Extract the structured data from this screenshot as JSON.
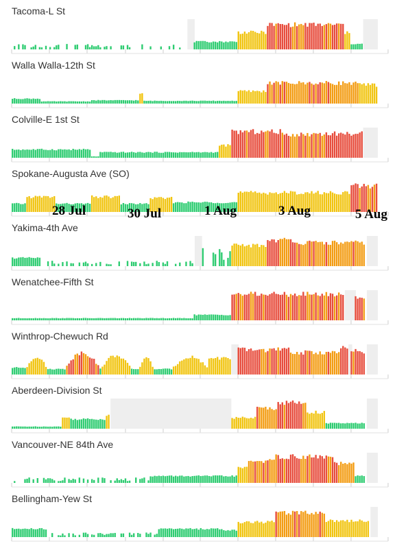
{
  "chart_data": {
    "type": "bar",
    "x_range": [
      "2023-07-27",
      "2023-08-05"
    ],
    "x_tick_labels": [
      "28 Jul",
      "30 Jul",
      "1 Aug",
      "3 Aug",
      "5 Aug"
    ],
    "category_colors": {
      "good": "#2ecc71",
      "moderate": "#f1c40f",
      "usg": "#f39c12",
      "unhealthy": "#e74c3c",
      "no_data": "#eeeeee"
    },
    "gridlines": true,
    "series": [
      {
        "name": "Tacoma-L St",
        "segments": [
          {
            "start": 0.0,
            "end": 0.48,
            "level": 0.12,
            "cat": "good",
            "pattern": "sparse"
          },
          {
            "start": 0.48,
            "end": 0.5,
            "level": 0,
            "cat": "no_data",
            "pattern": "nodata"
          },
          {
            "start": 0.5,
            "end": 0.62,
            "level": 0.28,
            "cat": "good",
            "pattern": "smooth"
          },
          {
            "start": 0.62,
            "end": 0.7,
            "level": 0.62,
            "cat": "moderate",
            "pattern": "smooth"
          },
          {
            "start": 0.7,
            "end": 0.91,
            "level": 0.9,
            "cat": "unhealthy",
            "pattern": "smooth"
          },
          {
            "start": 0.91,
            "end": 0.93,
            "level": 0.6,
            "cat": "moderate",
            "pattern": "smooth"
          },
          {
            "start": 0.93,
            "end": 0.96,
            "level": 0.2,
            "cat": "good",
            "pattern": "smooth"
          },
          {
            "start": 0.96,
            "end": 1.0,
            "level": 0,
            "cat": "no_data",
            "pattern": "nodata"
          }
        ]
      },
      {
        "name": "Walla Walla-12th St",
        "segments": [
          {
            "start": 0.0,
            "end": 0.08,
            "level": 0.18,
            "cat": "good",
            "pattern": "smooth"
          },
          {
            "start": 0.08,
            "end": 0.22,
            "level": 0.08,
            "cat": "good",
            "pattern": "smooth"
          },
          {
            "start": 0.22,
            "end": 0.35,
            "level": 0.12,
            "cat": "good",
            "pattern": "smooth"
          },
          {
            "start": 0.35,
            "end": 0.36,
            "level": 0.35,
            "cat": "moderate",
            "pattern": "smooth"
          },
          {
            "start": 0.36,
            "end": 0.62,
            "level": 0.1,
            "cat": "good",
            "pattern": "smooth"
          },
          {
            "start": 0.62,
            "end": 0.7,
            "level": 0.45,
            "cat": "moderate",
            "pattern": "smooth"
          },
          {
            "start": 0.7,
            "end": 0.95,
            "level": 0.75,
            "cat": "usg",
            "pattern": "smooth"
          },
          {
            "start": 0.95,
            "end": 1.0,
            "level": 0.68,
            "cat": "moderate",
            "pattern": "smooth"
          }
        ]
      },
      {
        "name": "Colville-E 1st St",
        "segments": [
          {
            "start": 0.0,
            "end": 0.22,
            "level": 0.3,
            "cat": "good",
            "pattern": "smooth"
          },
          {
            "start": 0.22,
            "end": 0.24,
            "level": 0.05,
            "cat": "good",
            "pattern": "smooth"
          },
          {
            "start": 0.24,
            "end": 0.57,
            "level": 0.2,
            "cat": "good",
            "pattern": "smooth"
          },
          {
            "start": 0.57,
            "end": 0.6,
            "level": 0.45,
            "cat": "moderate",
            "pattern": "smooth"
          },
          {
            "start": 0.6,
            "end": 0.74,
            "level": 0.95,
            "cat": "unhealthy",
            "pattern": "smooth"
          },
          {
            "start": 0.74,
            "end": 0.82,
            "level": 0.85,
            "cat": "usg",
            "pattern": "smooth"
          },
          {
            "start": 0.82,
            "end": 0.96,
            "level": 0.88,
            "cat": "unhealthy",
            "pattern": "smooth"
          },
          {
            "start": 0.96,
            "end": 1.0,
            "level": 0,
            "cat": "no_data",
            "pattern": "nodata"
          }
        ]
      },
      {
        "name": "Spokane-Augusta Ave (SO)",
        "segments": [
          {
            "start": 0.0,
            "end": 0.04,
            "level": 0.3,
            "cat": "good",
            "pattern": "smooth"
          },
          {
            "start": 0.04,
            "end": 0.12,
            "level": 0.55,
            "cat": "moderate",
            "pattern": "smooth"
          },
          {
            "start": 0.12,
            "end": 0.22,
            "level": 0.3,
            "cat": "good",
            "pattern": "smooth"
          },
          {
            "start": 0.22,
            "end": 0.3,
            "level": 0.55,
            "cat": "moderate",
            "pattern": "smooth"
          },
          {
            "start": 0.3,
            "end": 0.38,
            "level": 0.3,
            "cat": "good",
            "pattern": "smooth"
          },
          {
            "start": 0.38,
            "end": 0.44,
            "level": 0.5,
            "cat": "moderate",
            "pattern": "smooth"
          },
          {
            "start": 0.44,
            "end": 0.62,
            "level": 0.35,
            "cat": "good",
            "pattern": "smooth"
          },
          {
            "start": 0.62,
            "end": 0.93,
            "level": 0.7,
            "cat": "moderate",
            "pattern": "smooth"
          },
          {
            "start": 0.93,
            "end": 1.0,
            "level": 0.95,
            "cat": "unhealthy",
            "pattern": "smooth"
          }
        ]
      },
      {
        "name": "Yakima-4th Ave",
        "segments": [
          {
            "start": 0.0,
            "end": 0.08,
            "level": 0.3,
            "cat": "good",
            "pattern": "smooth"
          },
          {
            "start": 0.08,
            "end": 0.5,
            "level": 0.12,
            "cat": "good",
            "pattern": "sparse"
          },
          {
            "start": 0.5,
            "end": 0.52,
            "level": 0,
            "cat": "no_data",
            "pattern": "nodata"
          },
          {
            "start": 0.52,
            "end": 0.6,
            "level": 0.4,
            "cat": "good",
            "pattern": "sparse"
          },
          {
            "start": 0.6,
            "end": 0.7,
            "level": 0.75,
            "cat": "moderate",
            "pattern": "smooth"
          },
          {
            "start": 0.7,
            "end": 0.78,
            "level": 0.95,
            "cat": "unhealthy",
            "pattern": "smooth"
          },
          {
            "start": 0.78,
            "end": 0.97,
            "level": 0.85,
            "cat": "usg",
            "pattern": "smooth"
          },
          {
            "start": 0.97,
            "end": 1.0,
            "level": 0,
            "cat": "no_data",
            "pattern": "nodata"
          }
        ]
      },
      {
        "name": "Wenatchee-Fifth St",
        "segments": [
          {
            "start": 0.0,
            "end": 0.5,
            "level": 0.08,
            "cat": "good",
            "pattern": "smooth"
          },
          {
            "start": 0.5,
            "end": 0.6,
            "level": 0.2,
            "cat": "good",
            "pattern": "smooth"
          },
          {
            "start": 0.6,
            "end": 0.91,
            "level": 0.95,
            "cat": "unhealthy",
            "pattern": "smooth"
          },
          {
            "start": 0.91,
            "end": 0.94,
            "level": 0,
            "cat": "no_data",
            "pattern": "nodata"
          },
          {
            "start": 0.94,
            "end": 0.97,
            "level": 0.85,
            "cat": "unhealthy",
            "pattern": "smooth"
          },
          {
            "start": 0.97,
            "end": 1.0,
            "level": 0,
            "cat": "no_data",
            "pattern": "nodata"
          }
        ]
      },
      {
        "name": "Winthrop-Chewuch Rd",
        "segments": [
          {
            "start": 0.0,
            "end": 0.04,
            "level": 0.25,
            "cat": "good",
            "pattern": "smooth"
          },
          {
            "start": 0.04,
            "end": 0.1,
            "level": 0.65,
            "cat": "moderate",
            "pattern": "hump"
          },
          {
            "start": 0.1,
            "end": 0.15,
            "level": 0.2,
            "cat": "good",
            "pattern": "smooth"
          },
          {
            "start": 0.15,
            "end": 0.24,
            "level": 0.8,
            "cat": "unhealthy",
            "pattern": "hump"
          },
          {
            "start": 0.24,
            "end": 0.25,
            "level": 0.2,
            "cat": "good",
            "pattern": "smooth"
          },
          {
            "start": 0.25,
            "end": 0.33,
            "level": 0.7,
            "cat": "moderate",
            "pattern": "hump"
          },
          {
            "start": 0.33,
            "end": 0.35,
            "level": 0.2,
            "cat": "good",
            "pattern": "smooth"
          },
          {
            "start": 0.35,
            "end": 0.39,
            "level": 0.6,
            "cat": "moderate",
            "pattern": "hump"
          },
          {
            "start": 0.39,
            "end": 0.44,
            "level": 0.2,
            "cat": "good",
            "pattern": "smooth"
          },
          {
            "start": 0.44,
            "end": 0.54,
            "level": 0.65,
            "cat": "moderate",
            "pattern": "hump"
          },
          {
            "start": 0.54,
            "end": 0.6,
            "level": 0.6,
            "cat": "moderate",
            "pattern": "smooth"
          },
          {
            "start": 0.6,
            "end": 0.62,
            "level": 0,
            "cat": "no_data",
            "pattern": "nodata"
          },
          {
            "start": 0.62,
            "end": 0.76,
            "level": 0.9,
            "cat": "unhealthy",
            "pattern": "smooth"
          },
          {
            "start": 0.76,
            "end": 0.9,
            "level": 0.8,
            "cat": "usg",
            "pattern": "smooth"
          },
          {
            "start": 0.9,
            "end": 0.92,
            "level": 0.95,
            "cat": "unhealthy",
            "pattern": "smooth"
          },
          {
            "start": 0.92,
            "end": 0.93,
            "level": 0,
            "cat": "no_data",
            "pattern": "nodata"
          },
          {
            "start": 0.93,
            "end": 0.97,
            "level": 0.85,
            "cat": "unhealthy",
            "pattern": "smooth"
          },
          {
            "start": 0.97,
            "end": 1.0,
            "level": 0,
            "cat": "no_data",
            "pattern": "nodata"
          }
        ]
      },
      {
        "name": "Aberdeen-Division St",
        "segments": [
          {
            "start": 0.0,
            "end": 0.14,
            "level": 0.08,
            "cat": "good",
            "pattern": "smooth"
          },
          {
            "start": 0.14,
            "end": 0.16,
            "level": 0.4,
            "cat": "moderate",
            "pattern": "smooth"
          },
          {
            "start": 0.16,
            "end": 0.26,
            "level": 0.35,
            "cat": "good",
            "pattern": "smooth"
          },
          {
            "start": 0.26,
            "end": 0.27,
            "level": 0.5,
            "cat": "moderate",
            "pattern": "smooth"
          },
          {
            "start": 0.27,
            "end": 0.6,
            "level": 0,
            "cat": "no_data",
            "pattern": "nodata"
          },
          {
            "start": 0.6,
            "end": 0.67,
            "level": 0.4,
            "cat": "moderate",
            "pattern": "smooth"
          },
          {
            "start": 0.67,
            "end": 0.73,
            "level": 0.75,
            "cat": "usg",
            "pattern": "smooth"
          },
          {
            "start": 0.73,
            "end": 0.81,
            "level": 0.95,
            "cat": "unhealthy",
            "pattern": "smooth"
          },
          {
            "start": 0.81,
            "end": 0.86,
            "level": 0.6,
            "cat": "moderate",
            "pattern": "smooth"
          },
          {
            "start": 0.86,
            "end": 0.97,
            "level": 0.2,
            "cat": "good",
            "pattern": "smooth"
          },
          {
            "start": 0.97,
            "end": 1.0,
            "level": 0,
            "cat": "no_data",
            "pattern": "nodata"
          }
        ]
      },
      {
        "name": "Vancouver-NE 84th Ave",
        "segments": [
          {
            "start": 0.0,
            "end": 0.38,
            "level": 0.12,
            "cat": "good",
            "pattern": "sparse"
          },
          {
            "start": 0.38,
            "end": 0.62,
            "level": 0.25,
            "cat": "good",
            "pattern": "smooth"
          },
          {
            "start": 0.62,
            "end": 0.65,
            "level": 0.55,
            "cat": "moderate",
            "pattern": "smooth"
          },
          {
            "start": 0.65,
            "end": 0.72,
            "level": 0.8,
            "cat": "usg",
            "pattern": "smooth"
          },
          {
            "start": 0.72,
            "end": 0.88,
            "level": 0.95,
            "cat": "unhealthy",
            "pattern": "smooth"
          },
          {
            "start": 0.88,
            "end": 0.94,
            "level": 0.7,
            "cat": "usg",
            "pattern": "smooth"
          },
          {
            "start": 0.94,
            "end": 0.97,
            "level": 0.25,
            "cat": "good",
            "pattern": "smooth"
          },
          {
            "start": 0.97,
            "end": 1.0,
            "level": 0,
            "cat": "no_data",
            "pattern": "nodata"
          }
        ]
      },
      {
        "name": "Bellingham-Yew St",
        "segments": [
          {
            "start": 0.0,
            "end": 0.1,
            "level": 0.3,
            "cat": "good",
            "pattern": "smooth"
          },
          {
            "start": 0.1,
            "end": 0.4,
            "level": 0.1,
            "cat": "good",
            "pattern": "sparse"
          },
          {
            "start": 0.4,
            "end": 0.58,
            "level": 0.3,
            "cat": "good",
            "pattern": "smooth"
          },
          {
            "start": 0.58,
            "end": 0.62,
            "level": 0.25,
            "cat": "good",
            "pattern": "smooth"
          },
          {
            "start": 0.62,
            "end": 0.72,
            "level": 0.55,
            "cat": "moderate",
            "pattern": "smooth"
          },
          {
            "start": 0.72,
            "end": 0.86,
            "level": 0.9,
            "cat": "usg",
            "pattern": "smooth"
          },
          {
            "start": 0.86,
            "end": 0.92,
            "level": 0.6,
            "cat": "moderate",
            "pattern": "smooth"
          },
          {
            "start": 0.92,
            "end": 0.98,
            "level": 0.6,
            "cat": "moderate",
            "pattern": "smooth"
          },
          {
            "start": 0.98,
            "end": 1.0,
            "level": 0,
            "cat": "no_data",
            "pattern": "nodata"
          }
        ]
      }
    ]
  }
}
